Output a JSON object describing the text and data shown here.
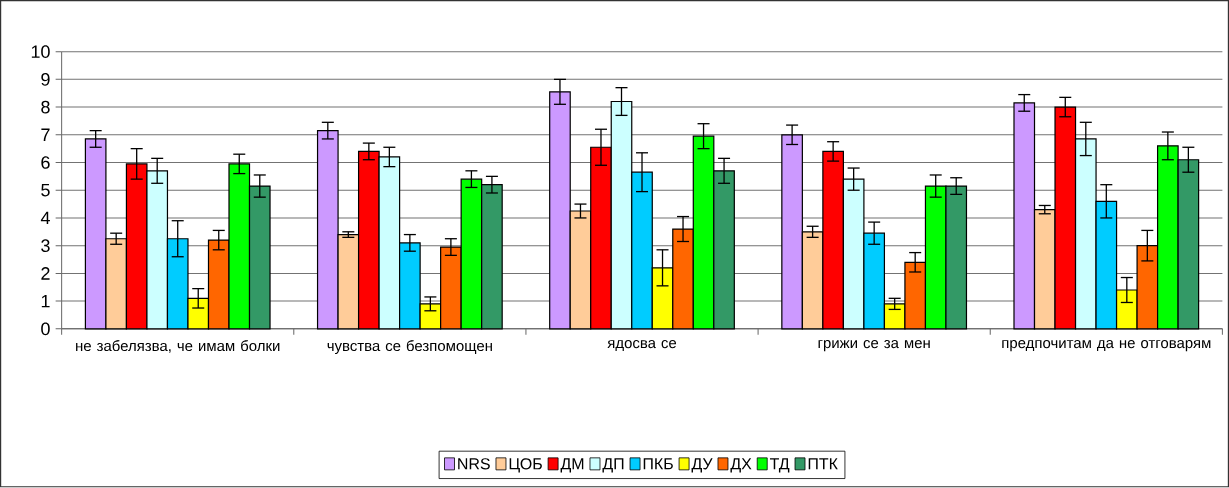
{
  "chart_data": {
    "type": "bar",
    "categories": [
      "не забелязва, че имам болки",
      "чувства се безпомощен",
      "ядосва се",
      "грижи се за мен",
      "предпочитам да не отговарям"
    ],
    "series": [
      {
        "name": "NRS",
        "color": "#cc99ff",
        "values": [
          6.85,
          7.15,
          8.55,
          7.0,
          8.15
        ],
        "errors": [
          0.3,
          0.3,
          0.45,
          0.35,
          0.3
        ]
      },
      {
        "name": "ЦОБ",
        "color": "#ffcc99",
        "values": [
          3.25,
          3.4,
          4.25,
          3.5,
          4.3
        ],
        "errors": [
          0.2,
          0.1,
          0.25,
          0.2,
          0.15
        ]
      },
      {
        "name": "ДМ",
        "color": "#ff0000",
        "values": [
          5.95,
          6.4,
          6.55,
          6.4,
          8.0
        ],
        "errors": [
          0.55,
          0.3,
          0.65,
          0.35,
          0.35
        ]
      },
      {
        "name": "ДП",
        "color": "#ccffff",
        "values": [
          5.7,
          6.2,
          8.2,
          5.4,
          6.85
        ],
        "errors": [
          0.45,
          0.35,
          0.5,
          0.4,
          0.6
        ]
      },
      {
        "name": "ПКБ",
        "color": "#00ccff",
        "values": [
          3.25,
          3.1,
          5.65,
          3.45,
          4.6
        ],
        "errors": [
          0.65,
          0.3,
          0.7,
          0.4,
          0.6
        ]
      },
      {
        "name": "ДУ",
        "color": "#ffff00",
        "values": [
          1.1,
          0.9,
          2.2,
          0.9,
          1.4
        ],
        "errors": [
          0.35,
          0.25,
          0.65,
          0.2,
          0.45
        ]
      },
      {
        "name": "ДХ",
        "color": "#ff6600",
        "values": [
          3.2,
          2.95,
          3.6,
          2.4,
          3.0
        ],
        "errors": [
          0.35,
          0.3,
          0.45,
          0.35,
          0.55
        ]
      },
      {
        "name": "ТД",
        "color": "#00ff00",
        "values": [
          5.95,
          5.4,
          6.95,
          5.15,
          6.6
        ],
        "errors": [
          0.35,
          0.3,
          0.45,
          0.4,
          0.5
        ]
      },
      {
        "name": "ПТК",
        "color": "#339966",
        "values": [
          5.15,
          5.2,
          5.7,
          5.15,
          6.1
        ],
        "errors": [
          0.4,
          0.3,
          0.45,
          0.3,
          0.45
        ]
      }
    ],
    "ylim": [
      0,
      10
    ],
    "yticks": [
      0,
      1,
      2,
      3,
      4,
      5,
      6,
      7,
      8,
      9,
      10
    ],
    "grid": "y",
    "legend": "bottom"
  }
}
